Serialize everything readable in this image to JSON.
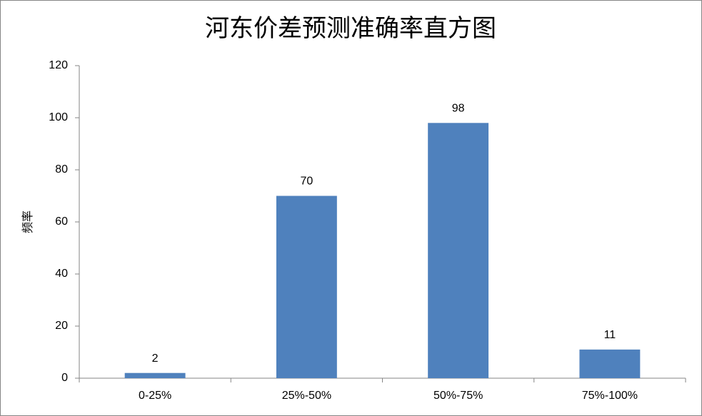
{
  "chart_data": {
    "type": "bar",
    "title": "河东价差预测准确率直方图",
    "ylabel": "频率",
    "categories": [
      "0-25%",
      "25%-50%",
      "50%-75%",
      "75%-100%"
    ],
    "values": [
      2,
      70,
      98,
      11
    ],
    "color": "#4f81bd",
    "ylim": [
      0,
      120
    ],
    "yticks": [
      0,
      20,
      40,
      60,
      80,
      100,
      120
    ],
    "grid": false,
    "data_labels": true
  }
}
